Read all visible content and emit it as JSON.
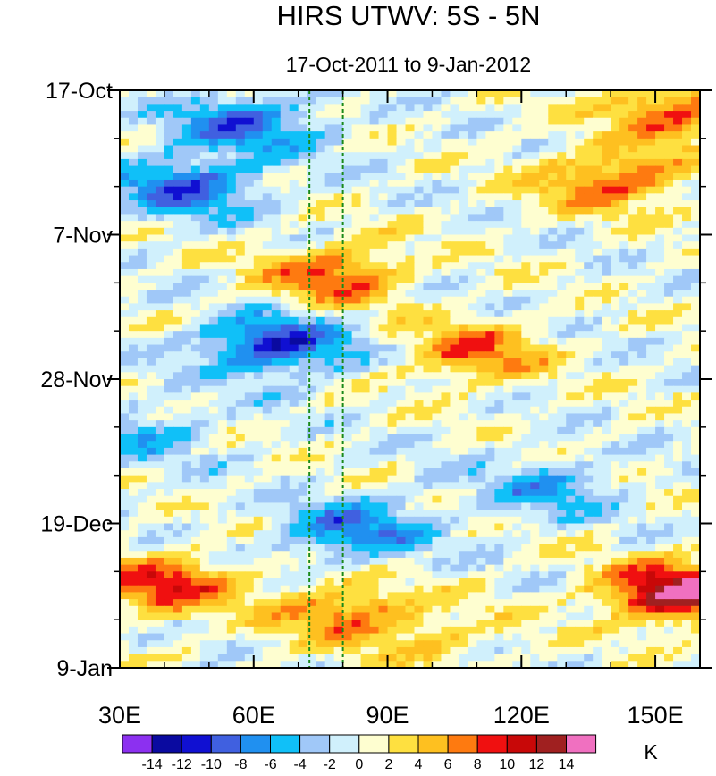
{
  "chart_data": {
    "type": "heatmap",
    "title": "HIRS UTWV: 5S - 5N",
    "subtitle": "17-Oct-2011 to 9-Jan-2012",
    "xlabel": "",
    "ylabel": "",
    "x_range": [
      30,
      160
    ],
    "x_unit": "deg E",
    "x_ticks": [
      {
        "value": 30,
        "label": "30E"
      },
      {
        "value": 60,
        "label": "60E"
      },
      {
        "value": 90,
        "label": "90E"
      },
      {
        "value": 120,
        "label": "120E"
      },
      {
        "value": 150,
        "label": "150E"
      }
    ],
    "y_range_days": [
      0,
      84
    ],
    "y_ticks": [
      {
        "day": 0,
        "label": "17-Oct"
      },
      {
        "day": 21,
        "label": "7-Nov"
      },
      {
        "day": 42,
        "label": "28-Nov"
      },
      {
        "day": 63,
        "label": "19-Dec"
      },
      {
        "day": 84,
        "label": "9-Jan"
      }
    ],
    "minor_y_tick_interval_days": 7,
    "minor_x_tick_interval": 10,
    "reference_lines_lon": [
      72.5,
      80
    ],
    "reference_line_color": "#1a8a1a",
    "colorbar": {
      "unit_label": "K",
      "levels": [
        -14,
        -12,
        -10,
        -8,
        -6,
        -4,
        -2,
        0,
        2,
        4,
        6,
        8,
        10,
        12,
        14
      ],
      "level_labels": [
        "-14",
        "-12",
        "-10",
        "-8",
        "-6",
        "-4",
        "-2",
        "0",
        "2",
        "4",
        "6",
        "8",
        "10",
        "12",
        "14"
      ],
      "colors": [
        "#8c30f0",
        "#0a0aa0",
        "#1010d2",
        "#4060e0",
        "#2090f0",
        "#10c0f8",
        "#a0c8f8",
        "#d0f0fc",
        "#fefed0",
        "#fee040",
        "#fec020",
        "#fe7a10",
        "#f01010",
        "#c80808",
        "#a02020",
        "#f070c0"
      ]
    },
    "anomaly_features": [
      {
        "lon": 58,
        "day": 5,
        "value": -8
      },
      {
        "lon": 45,
        "day": 14,
        "value": -9
      },
      {
        "lon": 140,
        "day": 13,
        "value": 8
      },
      {
        "lon": 155,
        "day": 3,
        "value": 8
      },
      {
        "lon": 78,
        "day": 27,
        "value": 8
      },
      {
        "lon": 65,
        "day": 37,
        "value": -11
      },
      {
        "lon": 110,
        "day": 38,
        "value": 7
      },
      {
        "lon": 82,
        "day": 64,
        "value": -8
      },
      {
        "lon": 40,
        "day": 72,
        "value": 9
      },
      {
        "lon": 80,
        "day": 76,
        "value": 7
      },
      {
        "lon": 155,
        "day": 73,
        "value": 14
      },
      {
        "lon": 35,
        "day": 50,
        "value": -4
      },
      {
        "lon": 125,
        "day": 58,
        "value": -5
      },
      {
        "lon": 100,
        "day": 80,
        "value": 3
      }
    ]
  }
}
